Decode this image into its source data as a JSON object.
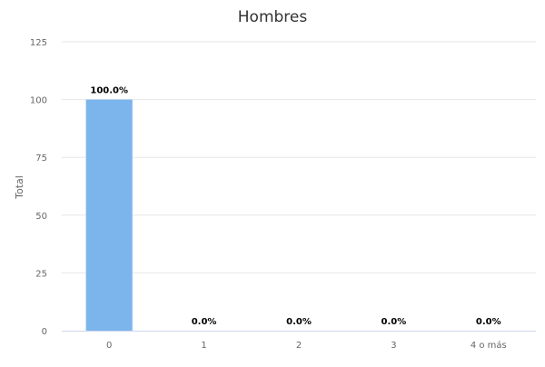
{
  "chart_data": {
    "type": "bar",
    "title": "Hombres",
    "xlabel": "",
    "ylabel": "Total",
    "categories": [
      "0",
      "1",
      "2",
      "3",
      "4 o más"
    ],
    "values": [
      100,
      0,
      0,
      0,
      0
    ],
    "data_labels": [
      "100.0%",
      "0.0%",
      "0.0%",
      "0.0%",
      "0.0%"
    ],
    "ylim": [
      0,
      125
    ],
    "yticks": [
      0,
      25,
      50,
      75,
      100,
      125
    ],
    "grid": true,
    "legend": "none",
    "bar_color": "#7cb5ec"
  }
}
